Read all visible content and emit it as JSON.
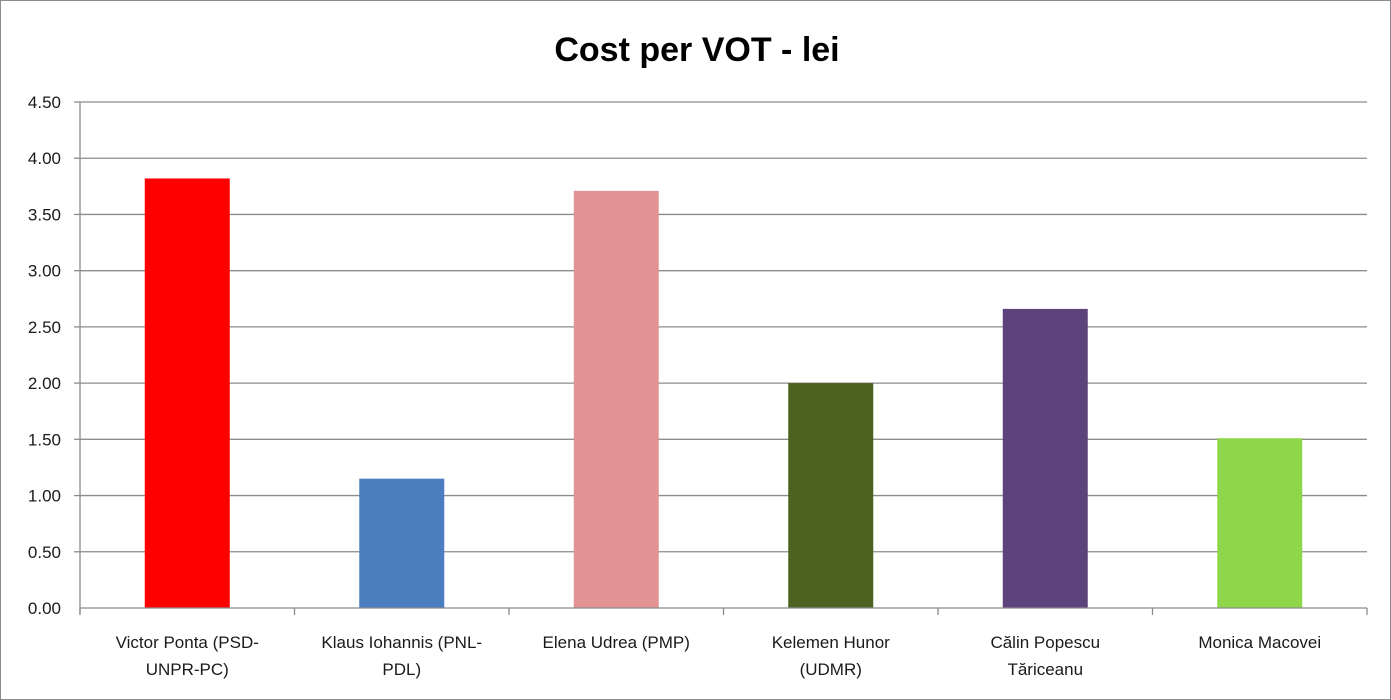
{
  "chart_data": {
    "type": "bar",
    "title": "Cost per VOT - lei",
    "xlabel": "",
    "ylabel": "",
    "ylim": [
      0,
      4.5
    ],
    "yticks": [
      "0.00",
      "0.50",
      "1.00",
      "1.50",
      "2.00",
      "2.50",
      "3.00",
      "3.50",
      "4.00",
      "4.50"
    ],
    "grid": true,
    "legend": "none",
    "categories": [
      [
        "Victor Ponta  (PSD-",
        "UNPR-PC)"
      ],
      [
        "Klaus Iohannis (PNL-",
        "PDL)"
      ],
      [
        "Elena Udrea (PMP)"
      ],
      [
        "Kelemen Hunor",
        "(UDMR)"
      ],
      [
        "Călin Popescu",
        "Tăriceanu"
      ],
      [
        "Monica Macovei"
      ]
    ],
    "values": [
      3.82,
      1.15,
      3.71,
      2.0,
      2.66,
      1.51
    ],
    "colors": [
      "#ff0000",
      "#4a7ebf",
      "#e39393",
      "#4b6221",
      "#5c437c",
      "#8fd64a"
    ]
  }
}
